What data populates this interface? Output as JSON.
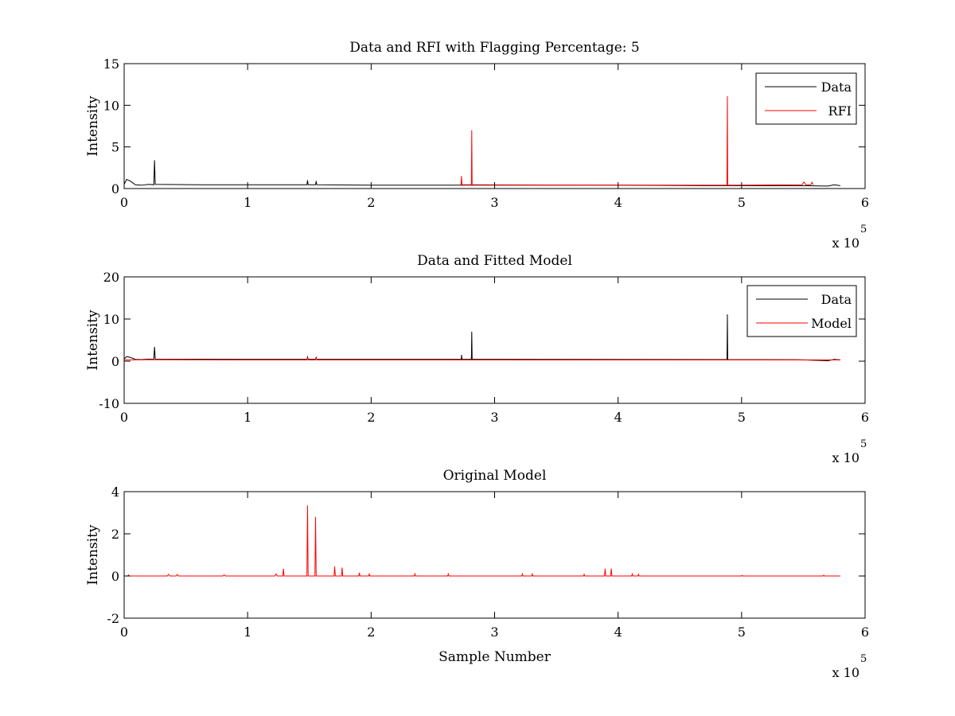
{
  "chart_data": [
    {
      "type": "line",
      "title": "Data and RFI with Flagging Percentage: 5",
      "xlabel": "",
      "ylabel": "Intensity",
      "xlim": [
        0,
        600000
      ],
      "ylim": [
        0,
        15
      ],
      "xticks": [
        "0",
        "1",
        "2",
        "3",
        "4",
        "5",
        "6"
      ],
      "yticks": [
        "0",
        "5",
        "10",
        "15"
      ],
      "x_multiplier": {
        "base": "x 10",
        "exponent": "5"
      },
      "legend_position": "top-right",
      "grid": false,
      "series": [
        {
          "name": "Data",
          "color": "#000000",
          "points": [
            [
              0,
              0.5
            ],
            [
              2000,
              1.1
            ],
            [
              5000,
              0.9
            ],
            [
              9000,
              0.45
            ],
            [
              14000,
              0.4
            ],
            [
              20000,
              0.5
            ],
            [
              24000,
              0.45
            ],
            [
              24600,
              3.4
            ],
            [
              25200,
              0.5
            ],
            [
              60000,
              0.45
            ],
            [
              120000,
              0.45
            ],
            [
              148000,
              0.45
            ],
            [
              148500,
              1.0
            ],
            [
              149000,
              0.45
            ],
            [
              155000,
              0.45
            ],
            [
              155500,
              0.9
            ],
            [
              156000,
              0.45
            ],
            [
              200000,
              0.4
            ],
            [
              272000,
              0.4
            ],
            [
              277000,
              0.4
            ],
            [
              300000,
              0.4
            ],
            [
              400000,
              0.4
            ],
            [
              470000,
              0.35
            ],
            [
              486000,
              0.35
            ],
            [
              493000,
              0.35
            ],
            [
              500000,
              0.35
            ],
            [
              545000,
              0.35
            ],
            [
              570000,
              0.3
            ],
            [
              575000,
              0.45
            ],
            [
              580000,
              0.35
            ]
          ]
        },
        {
          "name": "RFI",
          "color": "#ff0000",
          "points": [
            [
              272000,
              0.45
            ],
            [
              272800,
              0.45
            ],
            [
              273200,
              1.5
            ],
            [
              273600,
              0.45
            ],
            [
              280000,
              0.45
            ],
            [
              281200,
              0.45
            ],
            [
              281500,
              7.0
            ],
            [
              281800,
              0.45
            ],
            [
              285000,
              0.45
            ],
            [
              486000,
              0.4
            ],
            [
              488200,
              0.4
            ],
            [
              488500,
              11.1
            ],
            [
              488800,
              0.4
            ],
            [
              493000,
              0.4
            ],
            [
              549000,
              0.45
            ],
            [
              550500,
              0.8
            ],
            [
              552000,
              0.45
            ],
            [
              556000,
              0.45
            ],
            [
              557000,
              0.75
            ],
            [
              558000,
              0.45
            ]
          ]
        }
      ]
    },
    {
      "type": "line",
      "title": "Data and Fitted Model",
      "xlabel": "",
      "ylabel": "Intensity",
      "xlim": [
        0,
        600000
      ],
      "ylim": [
        -10,
        20
      ],
      "xticks": [
        "0",
        "1",
        "2",
        "3",
        "4",
        "5",
        "6"
      ],
      "yticks": [
        "-10",
        "0",
        "10",
        "20"
      ],
      "x_multiplier": {
        "base": "x 10",
        "exponent": "5"
      },
      "legend_position": "top-right",
      "grid": false,
      "series": [
        {
          "name": "Data",
          "color": "#000000",
          "points": [
            [
              0,
              0.5
            ],
            [
              2000,
              1.1
            ],
            [
              5000,
              0.9
            ],
            [
              9000,
              0.45
            ],
            [
              14000,
              0.4
            ],
            [
              20000,
              0.5
            ],
            [
              24000,
              0.45
            ],
            [
              24600,
              3.4
            ],
            [
              25200,
              0.5
            ],
            [
              100000,
              0.45
            ],
            [
              148000,
              0.45
            ],
            [
              148500,
              1.0
            ],
            [
              149000,
              0.45
            ],
            [
              155000,
              0.45
            ],
            [
              155500,
              0.9
            ],
            [
              156000,
              0.45
            ],
            [
              273000,
              0.45
            ],
            [
              273200,
              1.5
            ],
            [
              273600,
              0.45
            ],
            [
              281200,
              0.45
            ],
            [
              281500,
              7.0
            ],
            [
              281800,
              0.45
            ],
            [
              488200,
              0.4
            ],
            [
              488500,
              11.1
            ],
            [
              488800,
              0.4
            ],
            [
              545000,
              0.35
            ],
            [
              570000,
              0.1
            ],
            [
              575000,
              0.45
            ],
            [
              580000,
              0.3
            ]
          ]
        },
        {
          "name": "Model",
          "color": "#ff0000",
          "points": [
            [
              0,
              0.3
            ],
            [
              20000,
              0.35
            ],
            [
              100000,
              0.3
            ],
            [
              148000,
              0.3
            ],
            [
              148500,
              0.9
            ],
            [
              149000,
              0.3
            ],
            [
              155000,
              0.3
            ],
            [
              155500,
              0.8
            ],
            [
              156000,
              0.3
            ],
            [
              300000,
              0.3
            ],
            [
              500000,
              0.3
            ],
            [
              580000,
              0.3
            ]
          ]
        }
      ]
    },
    {
      "type": "line",
      "title": "Original Model",
      "xlabel": "Sample Number",
      "ylabel": "Intensity",
      "xlim": [
        0,
        600000
      ],
      "ylim": [
        -2,
        4
      ],
      "xticks": [
        "0",
        "1",
        "2",
        "3",
        "4",
        "5",
        "6"
      ],
      "yticks": [
        "-2",
        "0",
        "2",
        "4"
      ],
      "x_multiplier": {
        "base": "x 10",
        "exponent": "5"
      },
      "legend_position": "none",
      "grid": false,
      "series": [
        {
          "color": "#ff0000",
          "points": [
            [
              0,
              0
            ],
            [
              3000,
              0
            ],
            [
              3500,
              0.05
            ],
            [
              4000,
              0
            ],
            [
              35000,
              0
            ],
            [
              36000,
              0.08
            ],
            [
              37000,
              0
            ],
            [
              42000,
              0
            ],
            [
              43000,
              0.07
            ],
            [
              44000,
              0
            ],
            [
              80000,
              0
            ],
            [
              81000,
              0.06
            ],
            [
              82000,
              0
            ],
            [
              122000,
              0
            ],
            [
              123000,
              0.1
            ],
            [
              124000,
              0
            ],
            [
              128500,
              0
            ],
            [
              129000,
              0.35
            ],
            [
              129500,
              0
            ],
            [
              148000,
              0
            ],
            [
              148500,
              3.35
            ],
            [
              149000,
              0
            ],
            [
              154500,
              0
            ],
            [
              155000,
              2.8
            ],
            [
              155500,
              0
            ],
            [
              170000,
              0
            ],
            [
              170500,
              0.45
            ],
            [
              171000,
              0
            ],
            [
              176000,
              0
            ],
            [
              176500,
              0.4
            ],
            [
              177000,
              0
            ],
            [
              190000,
              0
            ],
            [
              190500,
              0.15
            ],
            [
              191000,
              0
            ],
            [
              198000,
              0
            ],
            [
              198500,
              0.1
            ],
            [
              199000,
              0
            ],
            [
              235000,
              0
            ],
            [
              235500,
              0.1
            ],
            [
              236000,
              0
            ],
            [
              262000,
              0
            ],
            [
              262500,
              0.1
            ],
            [
              263000,
              0
            ],
            [
              322000,
              0
            ],
            [
              322500,
              0.1
            ],
            [
              323000,
              0
            ],
            [
              330000,
              0
            ],
            [
              330500,
              0.1
            ],
            [
              331000,
              0
            ],
            [
              372000,
              0
            ],
            [
              372500,
              0.08
            ],
            [
              373000,
              0
            ],
            [
              389000,
              0
            ],
            [
              389500,
              0.35
            ],
            [
              390000,
              0
            ],
            [
              394000,
              0
            ],
            [
              394500,
              0.35
            ],
            [
              395000,
              0
            ],
            [
              411000,
              0
            ],
            [
              411500,
              0.1
            ],
            [
              412000,
              0
            ],
            [
              416000,
              0
            ],
            [
              416500,
              0.08
            ],
            [
              417000,
              0
            ],
            [
              500000,
              0
            ],
            [
              500500,
              0.03
            ],
            [
              501000,
              0
            ],
            [
              566000,
              0
            ],
            [
              566500,
              0.04
            ],
            [
              567000,
              0
            ],
            [
              580000,
              0
            ]
          ]
        }
      ]
    }
  ]
}
